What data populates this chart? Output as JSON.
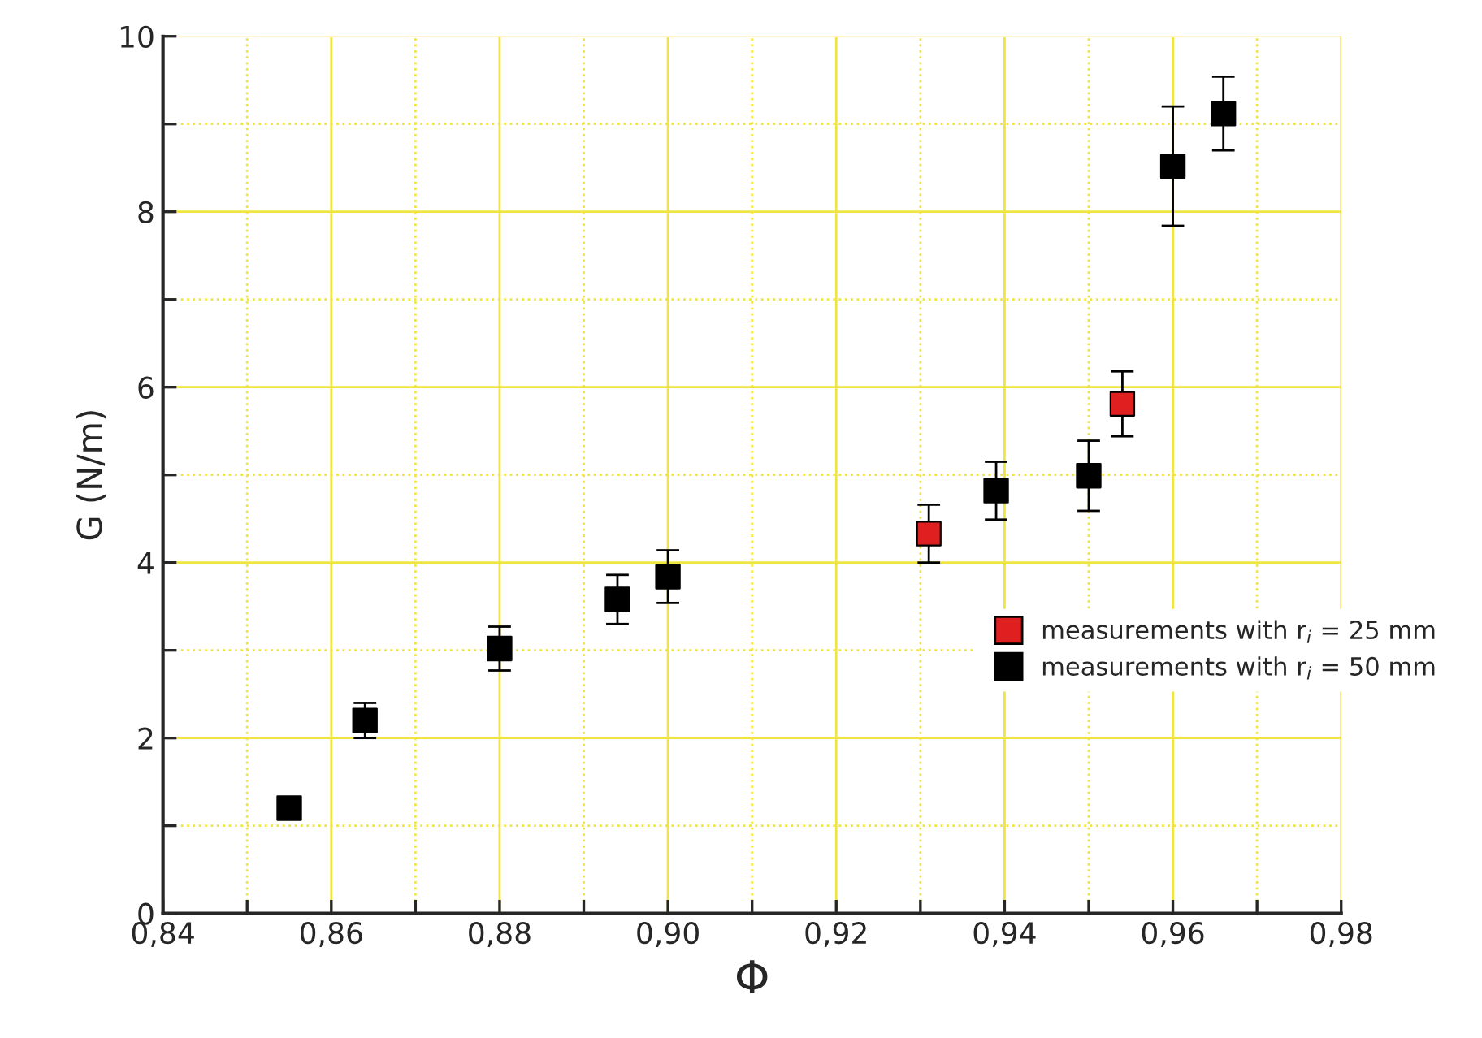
{
  "chart_data": {
    "type": "scatter",
    "xlabel": "Φ",
    "ylabel": "G (N/m)",
    "series": [
      {
        "name": "measurements with r$_{i}$ = 25 mm",
        "color": "#e02020",
        "x": [
          0.931,
          0.954
        ],
        "values": [
          4.33,
          5.81
        ],
        "errors": [
          0.33,
          0.37
        ]
      },
      {
        "name": "measurements with r$_{i}$ = 50 mm",
        "color": "#000000",
        "x": [
          0.855,
          0.864,
          0.88,
          0.894,
          0.9,
          0.939,
          0.95,
          0.96,
          0.966
        ],
        "values": [
          1.2,
          2.2,
          3.02,
          3.58,
          3.84,
          4.82,
          4.99,
          8.52,
          9.12
        ],
        "errors": [
          null,
          0.2,
          0.25,
          0.28,
          0.3,
          0.33,
          0.4,
          0.68,
          0.42
        ]
      }
    ],
    "xlim": [
      0.84,
      0.98
    ],
    "ylim": [
      0,
      10
    ],
    "xticks": [
      {
        "value": 0.84,
        "label": "0,84"
      },
      {
        "value": 0.85,
        "label": null
      },
      {
        "value": 0.86,
        "label": "0,86"
      },
      {
        "value": 0.87,
        "label": null
      },
      {
        "value": 0.88,
        "label": "0,88"
      },
      {
        "value": 0.89,
        "label": null
      },
      {
        "value": 0.9,
        "label": "0,90"
      },
      {
        "value": 0.91,
        "label": null
      },
      {
        "value": 0.92,
        "label": "0,92"
      },
      {
        "value": 0.93,
        "label": null
      },
      {
        "value": 0.94,
        "label": "0,94"
      },
      {
        "value": 0.95,
        "label": null
      },
      {
        "value": 0.96,
        "label": "0,96"
      },
      {
        "value": 0.97,
        "label": null
      },
      {
        "value": 0.98,
        "label": "0,98"
      }
    ],
    "yticks": [
      0,
      {
        "value": 1,
        "label": null
      },
      2,
      {
        "value": 3,
        "label": null
      },
      4,
      {
        "value": 5,
        "label": null
      },
      6,
      {
        "value": 7,
        "label": null
      },
      8,
      {
        "value": 9,
        "label": null
      },
      10
    ],
    "grid": true,
    "legend": "right",
    "marker": "square"
  }
}
